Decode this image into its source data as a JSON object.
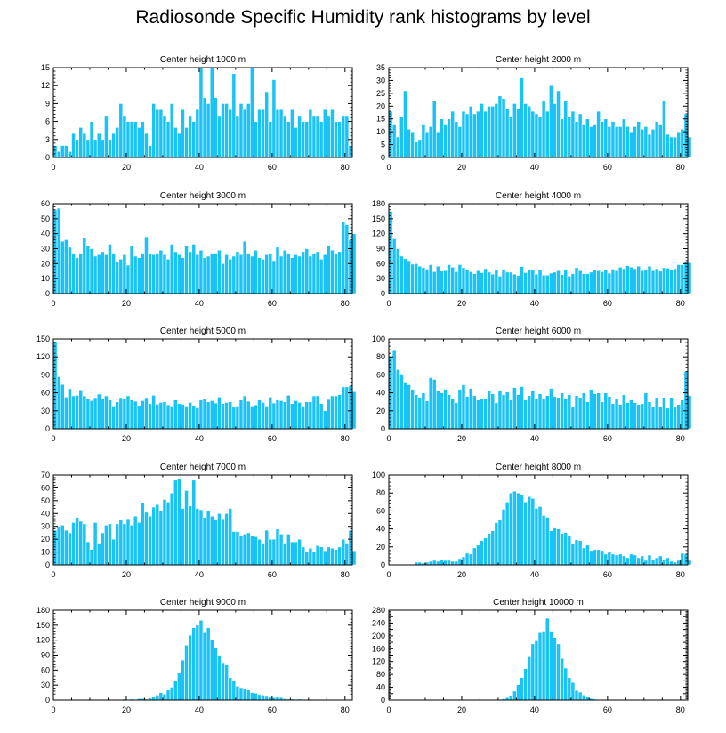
{
  "title": "Radiosonde Specific Humidity rank histograms by level",
  "colors": {
    "bar": "#19c3f5",
    "bar_edge": "#ffffff",
    "axis": "#000000"
  },
  "chart_data": [
    {
      "type": "bar",
      "title": "Center height 1000 m",
      "xlim": [
        0,
        82
      ],
      "ylim": [
        0,
        15
      ],
      "xticks": [
        0,
        20,
        40,
        60,
        80
      ],
      "yticks": [
        0,
        3,
        6,
        9,
        12,
        15
      ],
      "values": [
        2,
        1,
        2,
        2,
        1,
        4,
        3,
        5,
        4,
        3,
        6,
        3,
        4,
        3,
        7,
        3,
        4,
        5,
        9,
        7,
        6,
        6,
        6,
        5,
        6,
        4,
        2,
        9,
        8,
        8,
        7,
        6,
        9,
        5,
        4,
        8,
        5,
        7,
        6,
        8,
        15,
        10,
        9,
        15,
        10,
        7,
        9,
        9,
        8,
        14,
        7,
        9,
        8,
        9,
        15,
        6,
        8,
        8,
        11,
        6,
        13,
        8,
        8,
        7,
        6,
        8,
        5,
        7,
        6,
        6,
        8,
        7,
        7,
        6,
        8,
        7,
        8,
        6,
        6,
        7,
        7,
        2
      ]
    },
    {
      "type": "bar",
      "title": "Center height 2000 m",
      "xlim": [
        0,
        82
      ],
      "ylim": [
        0,
        35
      ],
      "xticks": [
        0,
        20,
        40,
        60,
        80
      ],
      "yticks": [
        0,
        5,
        10,
        15,
        20,
        25,
        30,
        35
      ],
      "values": [
        18,
        13,
        8,
        16,
        26,
        11,
        10,
        6,
        7,
        13,
        10,
        12,
        22,
        10,
        15,
        13,
        15,
        18,
        14,
        12,
        18,
        17,
        20,
        17,
        18,
        21,
        18,
        20,
        20,
        21,
        24,
        23,
        19,
        16,
        21,
        19,
        31,
        21,
        20,
        18,
        17,
        16,
        22,
        18,
        28,
        21,
        26,
        15,
        22,
        16,
        18,
        14,
        17,
        13,
        15,
        12,
        13,
        18,
        14,
        15,
        12,
        14,
        12,
        12,
        15,
        12,
        10,
        12,
        14,
        11,
        12,
        9,
        11,
        14,
        13,
        22,
        9,
        8,
        8,
        10,
        11,
        17,
        8
      ]
    },
    {
      "type": "bar",
      "title": "Center height 3000 m",
      "xlim": [
        0,
        82
      ],
      "ylim": [
        0,
        60
      ],
      "xticks": [
        0,
        20,
        40,
        60,
        80
      ],
      "yticks": [
        0,
        10,
        20,
        30,
        40,
        50,
        60
      ],
      "values": [
        56,
        57,
        35,
        36,
        31,
        27,
        24,
        27,
        37,
        32,
        30,
        25,
        26,
        28,
        26,
        33,
        27,
        21,
        23,
        26,
        19,
        32,
        25,
        24,
        27,
        38,
        27,
        26,
        27,
        29,
        26,
        23,
        33,
        28,
        26,
        24,
        32,
        28,
        33,
        26,
        29,
        24,
        25,
        27,
        27,
        29,
        20,
        26,
        23,
        25,
        28,
        26,
        35,
        27,
        25,
        29,
        24,
        23,
        26,
        27,
        22,
        31,
        25,
        29,
        27,
        24,
        26,
        25,
        28,
        30,
        25,
        27,
        28,
        23,
        26,
        32,
        29,
        27,
        28,
        48,
        46,
        36,
        40
      ]
    },
    {
      "type": "bar",
      "title": "Center height 4000 m",
      "xlim": [
        0,
        82
      ],
      "ylim": [
        0,
        180
      ],
      "xticks": [
        0,
        20,
        40,
        60,
        80
      ],
      "yticks": [
        0,
        30,
        60,
        90,
        120,
        150,
        180
      ],
      "values": [
        165,
        110,
        90,
        75,
        70,
        66,
        59,
        60,
        55,
        52,
        49,
        58,
        44,
        55,
        45,
        46,
        58,
        53,
        44,
        58,
        52,
        48,
        44,
        40,
        46,
        42,
        50,
        43,
        39,
        48,
        35,
        49,
        43,
        43,
        39,
        36,
        54,
        42,
        48,
        47,
        39,
        47,
        37,
        37,
        41,
        43,
        46,
        38,
        47,
        35,
        40,
        52,
        46,
        40,
        40,
        43,
        48,
        46,
        44,
        48,
        41,
        49,
        46,
        53,
        50,
        56,
        53,
        50,
        55,
        46,
        48,
        55,
        46,
        50,
        45,
        52,
        51,
        49,
        50,
        58,
        58,
        63,
        62
      ]
    },
    {
      "type": "bar",
      "title": "Center height 5000 m",
      "xlim": [
        0,
        82
      ],
      "ylim": [
        0,
        150
      ],
      "xticks": [
        0,
        20,
        40,
        60,
        80
      ],
      "yticks": [
        0,
        30,
        60,
        90,
        120,
        150
      ],
      "values": [
        145,
        87,
        74,
        53,
        67,
        55,
        56,
        65,
        55,
        50,
        47,
        52,
        58,
        50,
        55,
        48,
        38,
        45,
        52,
        50,
        55,
        48,
        46,
        39,
        47,
        52,
        42,
        56,
        41,
        44,
        45,
        40,
        38,
        48,
        42,
        41,
        38,
        44,
        39,
        35,
        48,
        50,
        45,
        47,
        43,
        53,
        42,
        44,
        45,
        36,
        38,
        48,
        55,
        46,
        38,
        40,
        48,
        44,
        38,
        53,
        43,
        48,
        47,
        45,
        56,
        42,
        47,
        44,
        38,
        45,
        45,
        55,
        55,
        42,
        30,
        49,
        55,
        55,
        57,
        70,
        70,
        72,
        62
      ]
    },
    {
      "type": "bar",
      "title": "Center height 6000 m",
      "xlim": [
        0,
        82
      ],
      "ylim": [
        0,
        100
      ],
      "xticks": [
        0,
        20,
        40,
        60,
        80
      ],
      "yticks": [
        0,
        20,
        40,
        60,
        80,
        100
      ],
      "values": [
        80,
        87,
        66,
        61,
        52,
        49,
        44,
        38,
        35,
        40,
        31,
        57,
        55,
        42,
        40,
        44,
        38,
        33,
        29,
        44,
        49,
        36,
        45,
        37,
        32,
        33,
        34,
        42,
        39,
        29,
        43,
        38,
        41,
        32,
        46,
        38,
        47,
        32,
        37,
        43,
        34,
        39,
        33,
        37,
        45,
        36,
        35,
        40,
        34,
        38,
        24,
        37,
        35,
        40,
        30,
        44,
        39,
        40,
        30,
        40,
        36,
        28,
        34,
        27,
        38,
        29,
        32,
        29,
        27,
        28,
        40,
        30,
        25,
        35,
        25,
        35,
        23,
        35,
        24,
        27,
        32,
        64,
        37
      ]
    },
    {
      "type": "bar",
      "title": "Center height 7000 m",
      "xlim": [
        0,
        82
      ],
      "ylim": [
        0,
        70
      ],
      "xticks": [
        0,
        20,
        40,
        60,
        80
      ],
      "yticks": [
        0,
        10,
        20,
        30,
        40,
        50,
        60,
        70
      ],
      "values": [
        27,
        30,
        31,
        27,
        25,
        33,
        37,
        34,
        32,
        18,
        12,
        33,
        17,
        25,
        31,
        32,
        20,
        32,
        35,
        32,
        36,
        31,
        38,
        33,
        48,
        41,
        38,
        45,
        47,
        42,
        51,
        49,
        56,
        66,
        67,
        44,
        58,
        46,
        66,
        44,
        43,
        37,
        42,
        38,
        35,
        40,
        36,
        40,
        44,
        26,
        26,
        23,
        24,
        25,
        23,
        22,
        20,
        17,
        27,
        20,
        20,
        28,
        24,
        17,
        24,
        18,
        18,
        20,
        14,
        10,
        13,
        10,
        15,
        14,
        11,
        14,
        13,
        12,
        14,
        20,
        17,
        27,
        11
      ]
    },
    {
      "type": "bar",
      "title": "Center height 8000 m",
      "xlim": [
        0,
        82
      ],
      "ylim": [
        0,
        100
      ],
      "xticks": [
        0,
        20,
        40,
        60,
        80
      ],
      "yticks": [
        0,
        20,
        40,
        60,
        80,
        100
      ],
      "values": [
        0,
        0,
        0,
        0,
        0,
        0,
        0,
        3,
        3,
        2,
        3,
        4,
        5,
        4,
        6,
        5,
        5,
        4,
        4,
        7,
        9,
        13,
        12,
        19,
        22,
        27,
        30,
        35,
        38,
        47,
        50,
        62,
        70,
        80,
        82,
        80,
        78,
        70,
        76,
        74,
        63,
        65,
        55,
        53,
        38,
        42,
        40,
        35,
        36,
        33,
        24,
        28,
        27,
        19,
        22,
        16,
        17,
        17,
        16,
        12,
        14,
        12,
        11,
        12,
        10,
        8,
        12,
        11,
        8,
        10,
        5,
        11,
        6,
        8,
        10,
        6,
        8,
        4,
        3,
        5,
        13,
        12,
        5
      ]
    },
    {
      "type": "bar",
      "title": "Center height 9000 m",
      "xlim": [
        0,
        82
      ],
      "ylim": [
        0,
        180
      ],
      "xticks": [
        0,
        20,
        40,
        60,
        80
      ],
      "yticks": [
        0,
        30,
        60,
        90,
        120,
        150,
        180
      ],
      "values": [
        0,
        0,
        0,
        0,
        0,
        0,
        0,
        0,
        0,
        0,
        0,
        0,
        0,
        0,
        0,
        0,
        0,
        0,
        0,
        2,
        1,
        2,
        1,
        3,
        3,
        2,
        4,
        6,
        10,
        15,
        12,
        20,
        26,
        38,
        55,
        80,
        110,
        130,
        145,
        150,
        160,
        135,
        145,
        120,
        105,
        90,
        75,
        70,
        45,
        40,
        28,
        25,
        22,
        20,
        15,
        14,
        11,
        10,
        9,
        6,
        5,
        6,
        5,
        3,
        2,
        2,
        1,
        2,
        1,
        0,
        0,
        1,
        1,
        0,
        0,
        0,
        0,
        0,
        0,
        0,
        0,
        0,
        0
      ]
    },
    {
      "type": "bar",
      "title": "Center height 10000 m",
      "xlim": [
        0,
        82
      ],
      "ylim": [
        0,
        280
      ],
      "xticks": [
        0,
        20,
        40,
        60,
        80
      ],
      "yticks": [
        0,
        20,
        40,
        60,
        80,
        100,
        120,
        140,
        160,
        180,
        200,
        220,
        240,
        260,
        280
      ],
      "yticklabels": [
        "0",
        "",
        "40",
        "",
        "80",
        "",
        "120",
        "",
        "160",
        "",
        "200",
        "",
        "240",
        "",
        "280"
      ],
      "values": [
        0,
        0,
        0,
        0,
        0,
        0,
        0,
        0,
        0,
        0,
        0,
        0,
        0,
        0,
        0,
        0,
        0,
        0,
        0,
        0,
        0,
        0,
        0,
        0,
        0,
        0,
        0,
        0,
        0,
        0,
        2,
        4,
        8,
        15,
        28,
        48,
        70,
        98,
        135,
        175,
        185,
        210,
        215,
        255,
        215,
        195,
        175,
        130,
        100,
        70,
        55,
        30,
        25,
        16,
        10,
        5,
        3,
        2,
        1,
        1,
        0,
        0,
        0,
        0,
        0,
        0,
        0,
        0,
        0,
        0,
        0,
        0,
        0,
        0,
        0,
        0,
        0,
        0,
        0,
        0,
        0,
        0,
        0
      ]
    }
  ]
}
